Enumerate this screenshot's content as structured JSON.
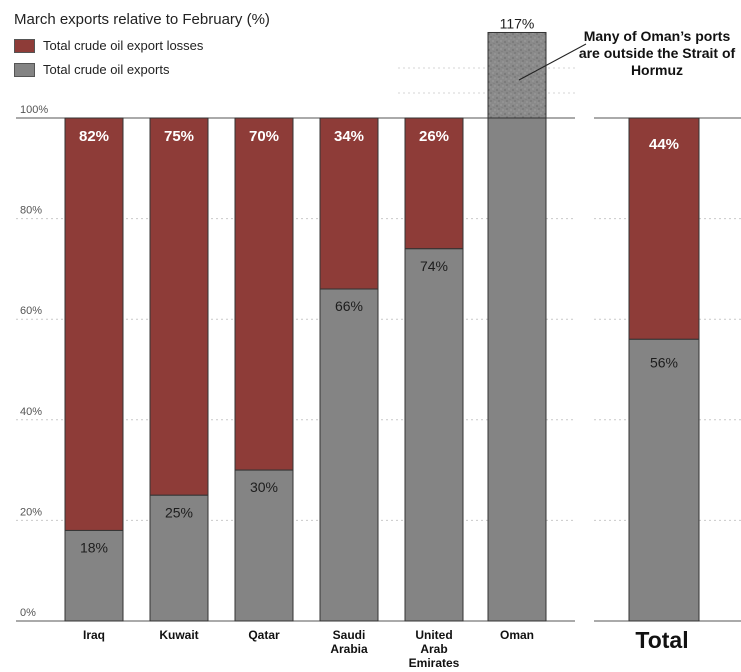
{
  "chart_data": {
    "type": "bar",
    "title": "March exports relative to February (%)",
    "legend": [
      {
        "name": "Total crude oil export losses",
        "color": "#8e3c38"
      },
      {
        "name": "Total crude oil exports",
        "color": "#848484"
      }
    ],
    "y_ticks": [
      "0%",
      "20%",
      "40%",
      "60%",
      "80%",
      "100%"
    ],
    "ylim": [
      0,
      117
    ],
    "categories": [
      {
        "name": "Iraq",
        "label_lines": [
          "Iraq"
        ],
        "exports": 18,
        "losses": 82,
        "exports_label": "18%",
        "losses_label": "82%"
      },
      {
        "name": "Kuwait",
        "label_lines": [
          "Kuwait"
        ],
        "exports": 25,
        "losses": 75,
        "exports_label": "25%",
        "losses_label": "75%"
      },
      {
        "name": "Qatar",
        "label_lines": [
          "Qatar"
        ],
        "exports": 30,
        "losses": 70,
        "exports_label": "30%",
        "losses_label": "70%"
      },
      {
        "name": "Saudi Arabia",
        "label_lines": [
          "Saudi",
          "Arabia"
        ],
        "exports": 66,
        "losses": 34,
        "exports_label": "66%",
        "losses_label": "34%"
      },
      {
        "name": "United Arab Emirates",
        "label_lines": [
          "United",
          "Arab",
          "Emirates"
        ],
        "exports": 74,
        "losses": 26,
        "exports_label": "74%",
        "losses_label": "26%"
      },
      {
        "name": "Oman",
        "label_lines": [
          "Oman"
        ],
        "exports": 117,
        "losses": 0,
        "exports_label": "117%",
        "losses_label": ""
      }
    ],
    "total": {
      "name": "Total",
      "exports": 56,
      "losses": 44,
      "exports_label": "56%",
      "losses_label": "44%"
    },
    "annotation": "Many of Oman’s ports are outside the Strait of Hormuz"
  }
}
